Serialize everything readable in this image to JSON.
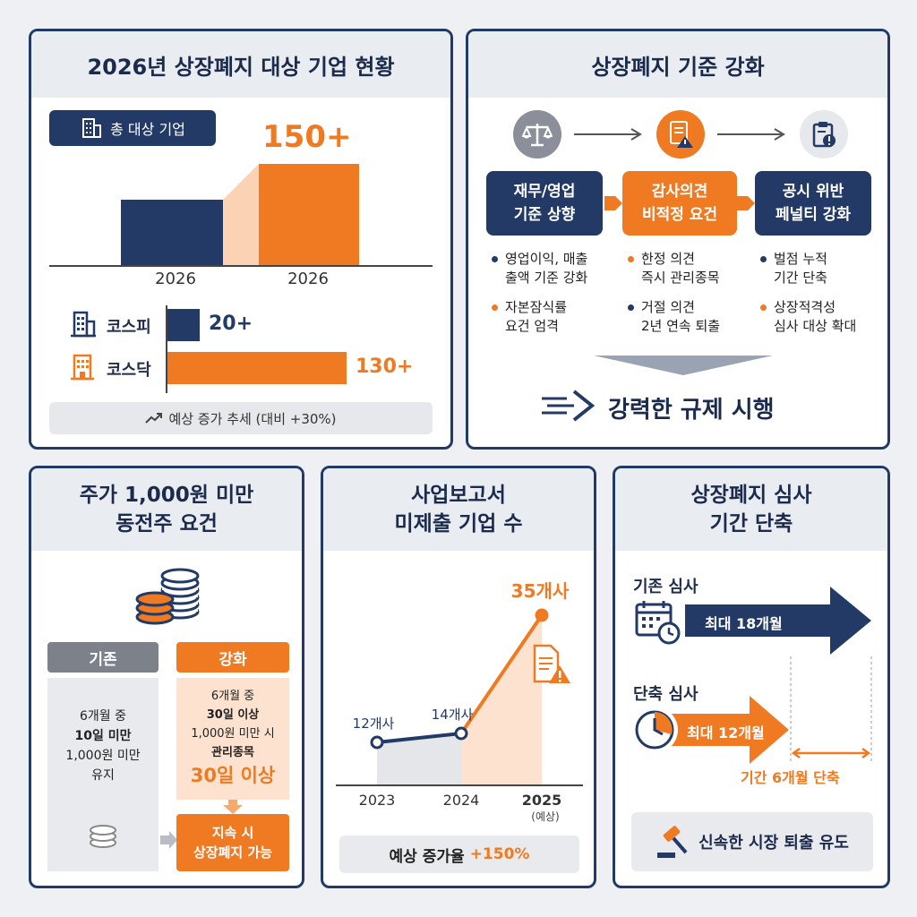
{
  "panel1": {
    "title": "2026년 상장폐지 대상 기업 현황",
    "total_label": "총 대상 기업",
    "total_value": "150+",
    "bar_year_left": "2026",
    "bar_year_right": "2026",
    "kospi_label": "코스피",
    "kospi_value": "20+",
    "kosdaq_label": "코스닥",
    "kosdaq_value": "130+",
    "trend_note": "예상 증가 추세 (대비 +30%)"
  },
  "panel2": {
    "title": "상장폐지 기준 강화",
    "steps": [
      {
        "label": "재무/영업\n기준 상향",
        "color": "#233a66"
      },
      {
        "label": "감사의견\n비적정 요건",
        "color": "#f07a22"
      },
      {
        "label": "공시 위반\n페널티 강화",
        "color": "#233a66"
      }
    ],
    "bullets": [
      {
        "text": "영업이익, 매출\n출액 기준 강화",
        "color": "#233a66"
      },
      {
        "text": "자본잠식률\n요건 엄격",
        "color": "#f07a22"
      },
      {
        "text": "한정 의견\n즉시 관리종목",
        "color": "#f07a22"
      },
      {
        "text": "거절 의견\n2년 연속 퇴출",
        "color": "#233a66"
      },
      {
        "text": "벌점 누적\n기간 단축",
        "color": "#233a66"
      },
      {
        "text": "상장적격성\n심사 대상 확대",
        "color": "#f07a22"
      }
    ],
    "conclusion": "강력한 규제 시행"
  },
  "panel3": {
    "title": "주가 1,000원 미만\n동전주 요건",
    "old_label": "기존",
    "new_label": "강화",
    "old_text": [
      "6개월 중",
      "10일 미만",
      "1,000원 미만",
      "유지"
    ],
    "new_text": [
      "6개월 중",
      "30일 이상",
      "1,000원 미만 시",
      "관리종목"
    ],
    "new_highlight": "30일 이상",
    "result": "지속 시\n상장폐지 가능"
  },
  "panel4": {
    "title": "사업보고서\n미제출 기업 수",
    "points": [
      {
        "label": "12개사"
      },
      {
        "label": "14개사"
      },
      {
        "label": "35개사"
      }
    ],
    "years": [
      "2023",
      "2024",
      "2025"
    ],
    "forecast_note": "(예상)",
    "growth_label": "예상 증가율",
    "growth_value": "+150%"
  },
  "panel5": {
    "title": "상장폐지 심사\n기간 단축",
    "old_label": "기존 심사",
    "old_period": "최대 18개월",
    "new_label": "단축 심사",
    "new_period": "최대 12개월",
    "reduction": "기간 6개월 단축",
    "footer": "신속한 시장 퇴출 유도"
  },
  "chart_data": {
    "type": "line",
    "title": "사업보고서 미제출 기업 수",
    "x": [
      "2023",
      "2024",
      "2025"
    ],
    "series": [
      {
        "values": [
          12,
          14,
          35
        ]
      }
    ],
    "xlabel": "",
    "ylabel": ""
  },
  "colors": {
    "navy": "#233a66",
    "orange": "#f07a22",
    "light_orange": "#fde3cf",
    "gray": "#e9ecf1"
  }
}
